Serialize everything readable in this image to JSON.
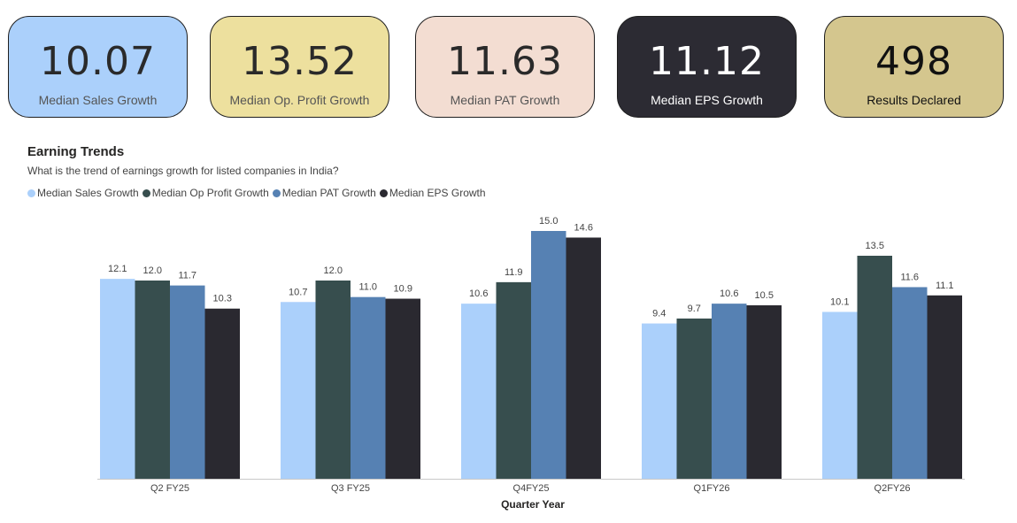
{
  "kpis": {
    "sales": {
      "value": "10.07",
      "label": "Median Sales Growth"
    },
    "op": {
      "value": "13.52",
      "label": "Median Op. Profit Growth"
    },
    "pat": {
      "value": "11.63",
      "label": "Median PAT Growth"
    },
    "eps": {
      "value": "11.12",
      "label": "Median EPS Growth"
    },
    "results": {
      "value": "498",
      "label": "Results Declared"
    }
  },
  "chart_data": {
    "type": "bar",
    "title": "Earning Trends",
    "subtitle": "What is the trend of earnings growth for listed companies in India?",
    "xlabel": "Quarter Year",
    "ylabel": "",
    "ylim": [
      0,
      15.0
    ],
    "categories": [
      "Q2 FY25",
      "Q3 FY25",
      "Q4FY25",
      "Q1FY26",
      "Q2FY26"
    ],
    "series": [
      {
        "name": "Median Sales Growth",
        "color": "#abd0fb",
        "values": [
          12.1,
          10.7,
          10.6,
          9.4,
          10.1
        ],
        "labels": [
          "12.1",
          "10.7",
          "10.6",
          "9.4",
          "10.1"
        ]
      },
      {
        "name": "Median Op Profit Growth",
        "color": "#374e4e",
        "values": [
          12.0,
          12.0,
          11.9,
          9.7,
          13.5
        ],
        "labels": [
          "12.0",
          "12.0",
          "11.9",
          "9.7",
          "13.5"
        ]
      },
      {
        "name": "Median PAT Growth",
        "color": "#5681b3",
        "values": [
          11.7,
          11.0,
          15.0,
          10.6,
          11.6
        ],
        "labels": [
          "11.7",
          "11.0",
          "15.0",
          "10.6",
          "11.6"
        ]
      },
      {
        "name": "Median EPS Growth",
        "color": "#2a2930",
        "values": [
          10.3,
          10.9,
          14.6,
          10.5,
          11.1
        ],
        "labels": [
          "10.3",
          "10.9",
          "14.6",
          "10.5",
          "11.1"
        ]
      }
    ]
  }
}
